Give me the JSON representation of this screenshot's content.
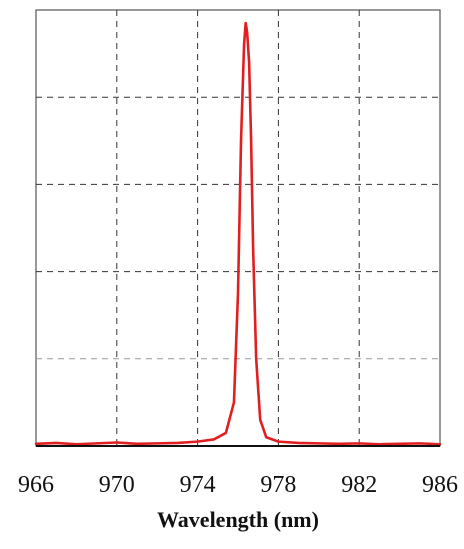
{
  "chart_data": {
    "type": "line",
    "title": "",
    "xlabel": "Wavelength (nm)",
    "ylabel": "",
    "xlim": [
      966,
      986
    ],
    "ylim": [
      0,
      1
    ],
    "grid": true,
    "x_ticks": [
      966,
      970,
      974,
      978,
      982,
      986
    ],
    "x_tick_labels": [
      "966",
      "970",
      "974",
      "978",
      "982",
      "986"
    ],
    "y_grid_values": [
      0.2,
      0.4,
      0.6,
      0.8
    ],
    "series": [
      {
        "color": "#e02020",
        "x": [
          966.0,
          967.0,
          968.0,
          969.0,
          970.0,
          971.0,
          972.0,
          973.0,
          974.0,
          974.8,
          975.4,
          975.8,
          976.0,
          976.15,
          976.3,
          976.38,
          976.45,
          976.55,
          976.65,
          976.75,
          976.9,
          977.1,
          977.4,
          978.0,
          979.0,
          980.0,
          981.0,
          982.0,
          983.0,
          984.0,
          985.0,
          986.0
        ],
        "y": [
          0.005,
          0.007,
          0.004,
          0.006,
          0.008,
          0.005,
          0.006,
          0.007,
          0.01,
          0.015,
          0.03,
          0.1,
          0.35,
          0.7,
          0.92,
          0.97,
          0.95,
          0.88,
          0.7,
          0.45,
          0.2,
          0.06,
          0.02,
          0.01,
          0.007,
          0.006,
          0.005,
          0.006,
          0.004,
          0.005,
          0.006,
          0.004
        ]
      }
    ]
  }
}
